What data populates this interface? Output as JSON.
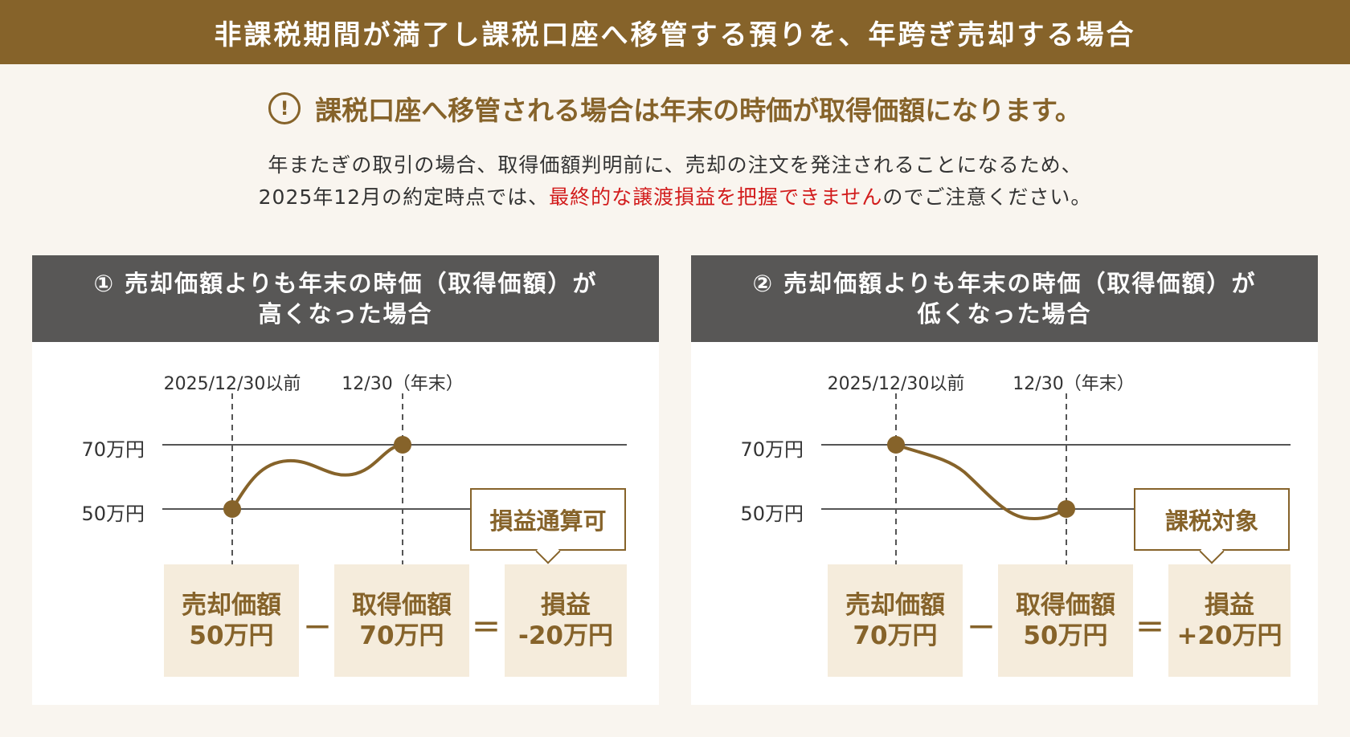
{
  "header": {
    "title": "非課税期間が満了し課税口座へ移管する預りを、年跨ぎ売却する場合"
  },
  "notice": {
    "icon": "exclamation-circle-icon",
    "text": "課税口座へ移管される場合は年末の時価が取得価額になります。"
  },
  "description": {
    "line1": "年またぎの取引の場合、取得価額判明前に、売却の注文を発注されることになるため、",
    "line2_before": "2025年12月の約定時点では、",
    "line2_red": "最終的な譲渡損益を把握できません",
    "line2_after": "のでご注意ください。"
  },
  "colors": {
    "brand": "#86632a",
    "panel_header": "#585756",
    "box": "#f5ecdc",
    "warning": "#d21c1c",
    "background": "#f9f5ef"
  },
  "panels": [
    {
      "title_line1": "① 売却価額よりも年末の時価（取得価額）が",
      "title_line2": "高くなった場合",
      "date_before": "2025/12/30以前",
      "date_end": "12/30（年末）",
      "y_high": "70万円",
      "y_low": "50万円",
      "sale_label": "売却価額",
      "sale_value": "50万円",
      "minus": "－",
      "cost_label": "取得価額",
      "cost_value": "70万円",
      "equals": "＝",
      "pl_label": "損益",
      "pl_value": "-20万円",
      "tag": "損益通算可",
      "start_value": 50,
      "end_value": 70
    },
    {
      "title_line1": "② 売却価額よりも年末の時価（取得価額）が",
      "title_line2": "低くなった場合",
      "date_before": "2025/12/30以前",
      "date_end": "12/30（年末）",
      "y_high": "70万円",
      "y_low": "50万円",
      "sale_label": "売却価額",
      "sale_value": "70万円",
      "minus": "－",
      "cost_label": "取得価額",
      "cost_value": "50万円",
      "equals": "＝",
      "pl_label": "損益",
      "pl_value": "+20万円",
      "tag": "課税対象",
      "start_value": 70,
      "end_value": 50
    }
  ]
}
